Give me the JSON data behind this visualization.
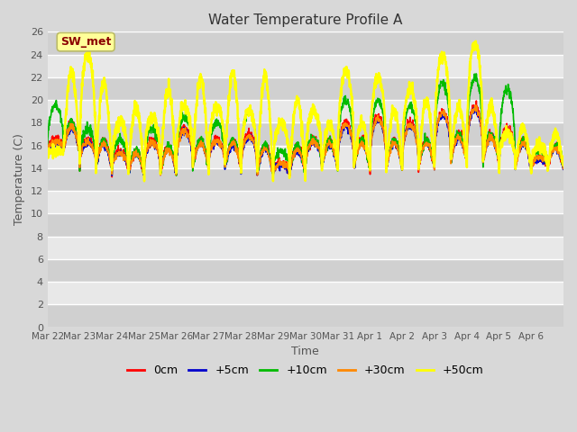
{
  "title": "Water Temperature Profile A",
  "xlabel": "Time",
  "ylabel": "Temperature (C)",
  "ylim": [
    0,
    26
  ],
  "yticks": [
    0,
    2,
    4,
    6,
    8,
    10,
    12,
    14,
    16,
    18,
    20,
    22,
    24,
    26
  ],
  "annotation_text": "SW_met",
  "annotation_color": "#8B0000",
  "annotation_bg": "#FFFF99",
  "annotation_edge": "#BBBB66",
  "fig_bg": "#D8D8D8",
  "plot_bg_light": "#E8E8E8",
  "plot_bg_dark": "#D0D0D0",
  "grid_color": "#FFFFFF",
  "series": [
    {
      "label": "0cm",
      "color": "#FF0000",
      "lw": 1.2
    },
    {
      "label": "+5cm",
      "color": "#0000CC",
      "lw": 1.2
    },
    {
      "label": "+10cm",
      "color": "#00BB00",
      "lw": 1.2
    },
    {
      "label": "+30cm",
      "color": "#FF8800",
      "lw": 1.2
    },
    {
      "label": "+50cm",
      "color": "#FFFF00",
      "lw": 1.8
    }
  ],
  "x_tick_labels": [
    "Mar 22",
    "Mar 23",
    "Mar 24",
    "Mar 25",
    "Mar 26",
    "Mar 27",
    "Mar 28",
    "Mar 29",
    "Mar 30",
    "Mar 31",
    "Apr 1",
    "Apr 2",
    "Apr 3",
    "Apr 4",
    "Apr 5",
    "Apr 6"
  ],
  "num_days": 16,
  "points_per_day": 144
}
